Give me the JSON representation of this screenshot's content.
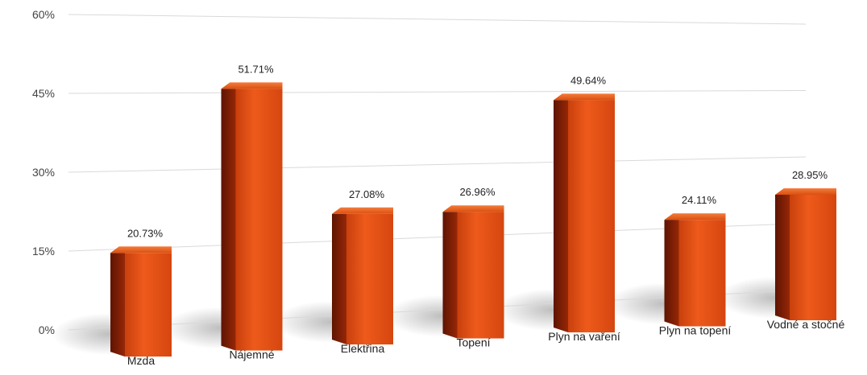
{
  "chart_data": {
    "type": "bar",
    "categories": [
      "Mzda",
      "Nájemné",
      "Elektřina",
      "Topení",
      "Plyn na vaření",
      "Plyn na topení",
      "Vodné a stočné"
    ],
    "values": [
      20.73,
      51.71,
      27.08,
      26.96,
      49.64,
      24.11,
      28.95
    ],
    "value_labels": [
      "20.73%",
      "51.71%",
      "27.08%",
      "26.96%",
      "49.64%",
      "24.11%",
      "28.95%"
    ],
    "y_ticks": [
      0,
      15,
      30,
      45,
      60
    ],
    "y_tick_labels": [
      "0%",
      "15%",
      "30%",
      "45%",
      "60%"
    ],
    "ylim": [
      0,
      60
    ],
    "title": "",
    "xlabel": "",
    "ylabel": "",
    "grid": true,
    "legend": "none",
    "style": "3d-perspective",
    "colors": {
      "bar_front": "#e04e15",
      "bar_side": "#8a1f05",
      "bar_top": "#f06a2a",
      "gridline": "#d9d9d9"
    }
  }
}
